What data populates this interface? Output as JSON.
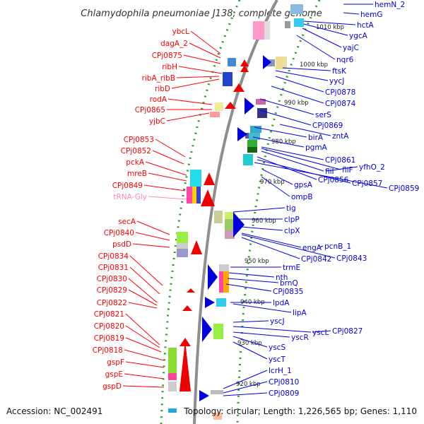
{
  "title": "Chlamydophila pneumoniae J138, complete genome",
  "footer": {
    "accession": "Accession: NC_002491",
    "topology": "Topology: circular; Length: 1,226,565 bp; Genes: 1,110"
  },
  "colors": {
    "left_strand": "#ff0000",
    "right_strand": "#0000dd",
    "trna": "#ff88bb",
    "backbone": "#888888",
    "ticks": "#229922"
  },
  "scale_labels": [
    "1010 kbp",
    "1000 kbp",
    "990 kbp",
    "980 kbp",
    "970 kbp",
    "960 kbp",
    "950 kbp",
    "940 kbp",
    "930 kbp",
    "920 kbp"
  ],
  "left_genes": [
    "ybcL",
    "dagA_2",
    "CPj0875",
    "ribH",
    "ribA_ribB",
    "ribD",
    "rodA",
    "CPj0865",
    "yjbC",
    "CPj0853",
    "CPj0852",
    "pckA",
    "mreB",
    "CPj0849",
    "tRNA-Gly",
    "secA",
    "CPj0840",
    "psdD",
    "CPj0834",
    "CPj0831",
    "CPj0830",
    "CPj0829",
    "CPj0822",
    "CPj0821",
    "CPj0820",
    "CPj0819",
    "CPj0818",
    "gspF",
    "gspE",
    "gspD"
  ],
  "right_genes": [
    "hemN_2",
    "hemG",
    "hctA",
    "ygcA",
    "yajC",
    "nqr6",
    "ftsK",
    "yycJ",
    "CPj0878",
    "CPj0874",
    "serS",
    "CPj0869",
    "zntA",
    "birA",
    "pgmA",
    "CPj0861",
    "yfhO_2",
    "fliF",
    "fliI",
    "CPj0856",
    "CPj0857",
    "CPj0859",
    "gpsA",
    "ompB",
    "tig",
    "clpP",
    "clpX",
    "engA",
    "pcnB_1",
    "CPj0842",
    "CPj0843",
    "trmE",
    "nth",
    "brnQ",
    "CPj0835",
    "lpdA",
    "lipA",
    "yscJ",
    "yscL",
    "CPj0827",
    "yscR",
    "yscS",
    "yscT",
    "lcrH_1",
    "CPj0810",
    "CPj0809"
  ]
}
